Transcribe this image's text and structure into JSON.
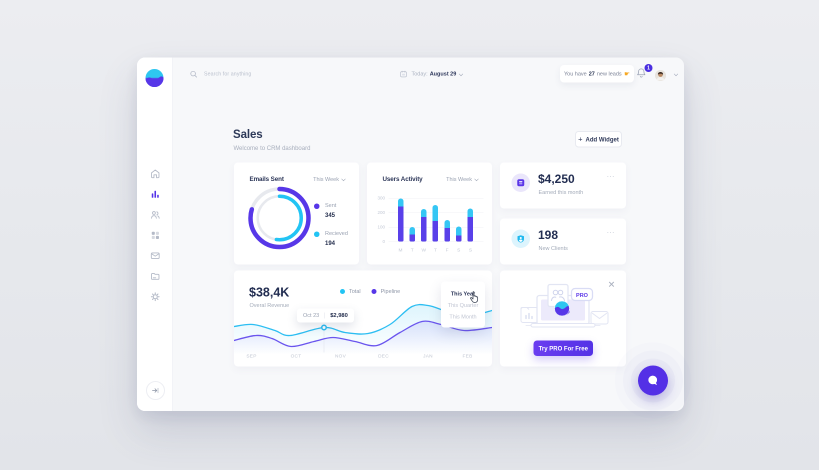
{
  "topbar": {
    "search_placeholder": "Search for anything",
    "date_prefix": "Today:",
    "date_value": "August 29",
    "leads_prefix": "You have",
    "leads_count": "27",
    "leads_suffix": "new leads",
    "notification_count": "1"
  },
  "sidebar": {
    "items": [
      {
        "id": "home",
        "icon": "home-icon",
        "active": false
      },
      {
        "id": "analytics",
        "icon": "analytics-icon",
        "active": true
      },
      {
        "id": "users",
        "icon": "users-icon",
        "active": false
      },
      {
        "id": "apps",
        "icon": "grid-icon",
        "active": false
      },
      {
        "id": "mail",
        "icon": "mail-icon",
        "active": false
      },
      {
        "id": "documents",
        "icon": "folder-icon",
        "active": false
      },
      {
        "id": "settings",
        "icon": "gear-icon",
        "active": false
      }
    ]
  },
  "page": {
    "title": "Sales",
    "subtitle": "Welcome to CRM dashboard",
    "add_widget_label": "Add Widget"
  },
  "emails_card": {
    "title": "Emails Sent",
    "period": "This Week",
    "chart_data": {
      "type": "donut",
      "series": [
        {
          "name": "Sent",
          "value": 345,
          "color": "#5737e8",
          "arc_degrees": 287,
          "ring": "outer"
        },
        {
          "name": "Recieved",
          "value": 194,
          "color": "#22c4f4",
          "arc_degrees": 188,
          "ring": "inner"
        }
      ],
      "track_color": "#e7e9ee"
    }
  },
  "activity_card": {
    "title": "Users Activity",
    "period": "This Week",
    "chart_data": {
      "type": "bar",
      "stacked": true,
      "categories": [
        "M",
        "T",
        "W",
        "T",
        "F",
        "S",
        "S"
      ],
      "series": [
        {
          "name": "bottom",
          "color": "#5940e9",
          "values": [
            240,
            50,
            170,
            140,
            92,
            42,
            170
          ]
        },
        {
          "name": "top",
          "color": "#35c6f4",
          "values": [
            55,
            50,
            55,
            113,
            56,
            63,
            58
          ]
        }
      ],
      "y_ticks": [
        0,
        100,
        200,
        300
      ],
      "ylim": [
        0,
        300
      ]
    }
  },
  "earned_card": {
    "value": "$4,250",
    "label": "Earned this month",
    "menu": "..."
  },
  "clients_card": {
    "value": "198",
    "label": "New Clients",
    "menu": "..."
  },
  "revenue_card": {
    "value": "$38,4K",
    "label": "Overal Revenue",
    "legend": [
      {
        "name": "Total",
        "color": "#22c4f4"
      },
      {
        "name": "Pipeline",
        "color": "#5737e8"
      }
    ],
    "tooltip": {
      "date": "Oct 23",
      "value": "$2,980"
    },
    "dropdown": {
      "items": [
        "This Year",
        "This Quarter",
        "This Month"
      ],
      "selected": "This Year"
    },
    "chart_data": {
      "type": "line",
      "x_labels": [
        "SEP",
        "OCT",
        "NOV",
        "DEC",
        "JAN",
        "FEB"
      ],
      "series": [
        {
          "name": "Total",
          "color": "#2cbef2",
          "points": [
            [
              0,
              112
            ],
            [
              38,
              108
            ],
            [
              82,
              120
            ],
            [
              112,
              130
            ],
            [
              180,
              114
            ],
            [
              222,
              124
            ],
            [
              268,
              126
            ],
            [
              312,
              108
            ],
            [
              356,
              72
            ],
            [
              388,
              70
            ],
            [
              420,
              80
            ],
            [
              446,
              88
            ],
            [
              484,
              88
            ],
            [
              516,
              80
            ]
          ]
        },
        {
          "name": "Pipeline",
          "color": "#6a55ee",
          "points": [
            [
              0,
              140
            ],
            [
              44,
              130
            ],
            [
              76,
              136
            ],
            [
              114,
              152
            ],
            [
              160,
              142
            ],
            [
              198,
              134
            ],
            [
              242,
              142
            ],
            [
              286,
              150
            ],
            [
              332,
              124
            ],
            [
              376,
              102
            ],
            [
              414,
              108
            ],
            [
              460,
              120
            ],
            [
              516,
              114
            ]
          ]
        }
      ],
      "marker": {
        "x": 180,
        "y": 114
      }
    }
  },
  "promo_card": {
    "badge": "PRO",
    "button_label": "Try PRO For Free"
  }
}
